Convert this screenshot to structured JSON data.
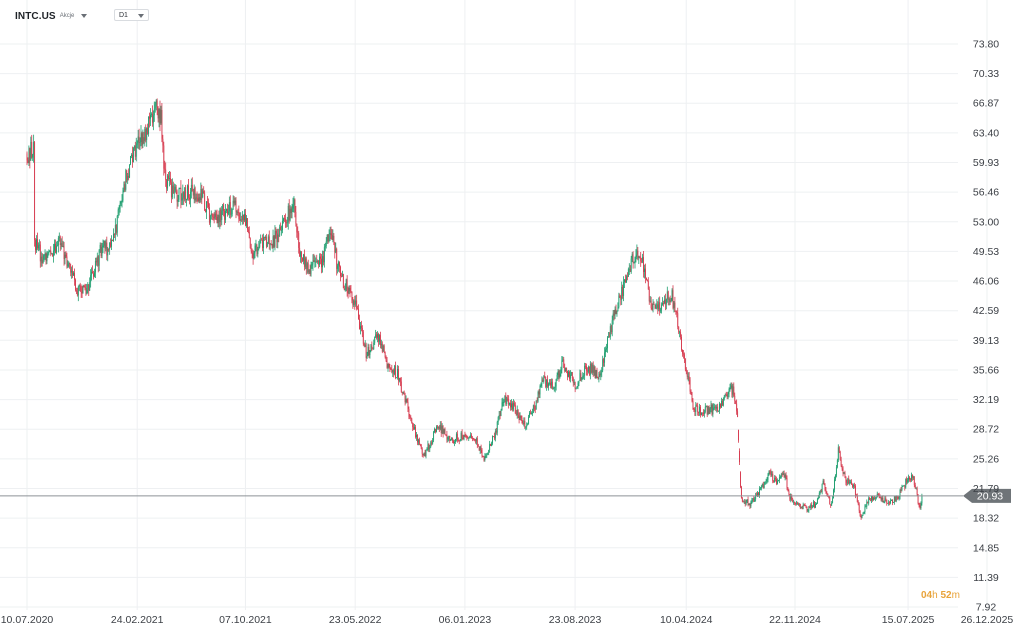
{
  "toolbar": {
    "symbol": "INTC.US",
    "asset_type": "Akcje",
    "interval": "D1"
  },
  "countdown": {
    "hours": "04",
    "hours_unit": "h",
    "minutes": "52",
    "minutes_unit": "m"
  },
  "colors": {
    "up": "#1e9e6f",
    "down": "#d6394d",
    "grid": "#eef0f2",
    "axis_text": "#3b3f45",
    "price_line": "#8d9296",
    "price_tag_bg": "#6f7478",
    "countdown": "#e8a33a"
  },
  "chart_data": {
    "type": "candlestick",
    "instrument": "INTC.US",
    "timeframe": "D1",
    "current_price": 20.93,
    "current_price_label": "20.93",
    "ylim": [
      7.92,
      75.6
    ],
    "y_ticks": [
      "73.80",
      "70.33",
      "66.87",
      "63.40",
      "59.93",
      "56.46",
      "53.00",
      "49.53",
      "46.06",
      "42.59",
      "39.13",
      "35.66",
      "32.19",
      "28.72",
      "25.26",
      "21.79",
      "18.32",
      "14.85",
      "11.39",
      "7.92"
    ],
    "x_ticks": [
      "10.07.2020",
      "24.02.2021",
      "07.10.2021",
      "23.05.2022",
      "06.01.2023",
      "23.08.2023",
      "10.04.2024",
      "22.11.2024",
      "15.07.2025",
      "26.12.2025"
    ],
    "grid": true,
    "price_path": [
      [
        "10.07.2020",
        61.0
      ],
      [
        "2020-07-24",
        61.5
      ],
      [
        "2020-07-26",
        50.5
      ],
      [
        "2020-08-15",
        48.5
      ],
      [
        "2020-09-15",
        51.0
      ],
      [
        "2020-10-23",
        45.0
      ],
      [
        "2020-11-10",
        44.5
      ],
      [
        "2020-12-10",
        49.5
      ],
      [
        "2021-01-05",
        50.5
      ],
      [
        "2021-01-25",
        57.0
      ],
      [
        "24.02.2021",
        62.0
      ],
      [
        "2021-03-15",
        63.5
      ],
      [
        "2021-04-05",
        66.5
      ],
      [
        "2021-04-15",
        65.0
      ],
      [
        "2021-04-23",
        58.0
      ],
      [
        "2021-05-15",
        56.0
      ],
      [
        "2021-06-15",
        56.5
      ],
      [
        "2021-07-10",
        56.0
      ],
      [
        "2021-07-25",
        53.5
      ],
      [
        "2021-08-15",
        54.0
      ],
      [
        "2021-09-15",
        54.5
      ],
      [
        "07.10.2021",
        53.0
      ],
      [
        "2021-10-22",
        49.5
      ],
      [
        "2021-11-15",
        50.5
      ],
      [
        "2021-12-10",
        51.0
      ],
      [
        "2022-01-05",
        54.0
      ],
      [
        "2022-01-15",
        56.0
      ],
      [
        "2022-01-28",
        49.0
      ],
      [
        "2022-02-15",
        47.5
      ],
      [
        "2022-03-15",
        48.5
      ],
      [
        "2022-04-01",
        52.0
      ],
      [
        "2022-04-20",
        47.0
      ],
      [
        "23.05.2022",
        43.5
      ],
      [
        "2022-06-15",
        37.5
      ],
      [
        "2022-07-10",
        39.5
      ],
      [
        "2022-07-29",
        36.5
      ],
      [
        "2022-08-20",
        35.0
      ],
      [
        "2022-09-15",
        30.0
      ],
      [
        "2022-10-13",
        25.5
      ],
      [
        "2022-11-10",
        29.0
      ],
      [
        "2022-12-10",
        27.5
      ],
      [
        "06.01.2023",
        28.0
      ],
      [
        "2023-01-27",
        27.5
      ],
      [
        "2023-02-15",
        25.5
      ],
      [
        "2023-03-10",
        28.0
      ],
      [
        "2023-03-28",
        32.5
      ],
      [
        "2023-04-20",
        31.0
      ],
      [
        "2023-05-10",
        29.0
      ],
      [
        "2023-06-01",
        31.5
      ],
      [
        "2023-06-15",
        34.5
      ],
      [
        "2023-07-10",
        33.5
      ],
      [
        "2023-07-28",
        36.5
      ],
      [
        "23.08.2023",
        34.0
      ],
      [
        "2023-09-15",
        36.0
      ],
      [
        "2023-10-15",
        35.0
      ],
      [
        "2023-11-01",
        40.0
      ],
      [
        "2023-11-25",
        44.0
      ],
      [
        "2023-12-15",
        47.5
      ],
      [
        "2023-12-28",
        50.0
      ],
      [
        "2024-01-10",
        48.5
      ],
      [
        "2024-01-26",
        43.5
      ],
      [
        "2024-02-15",
        43.0
      ],
      [
        "2024-03-10",
        44.5
      ],
      [
        "2024-03-20",
        42.0
      ],
      [
        "2024-04-05",
        37.0
      ],
      [
        "10.04.2024",
        36.0
      ],
      [
        "2024-04-26",
        31.0
      ],
      [
        "2024-05-15",
        31.0
      ],
      [
        "2024-06-15",
        31.0
      ],
      [
        "2024-07-15",
        33.5
      ],
      [
        "2024-07-25",
        30.5
      ],
      [
        "2024-08-02",
        20.5
      ],
      [
        "2024-08-20",
        20.0
      ],
      [
        "2024-09-10",
        21.5
      ],
      [
        "2024-09-28",
        23.5
      ],
      [
        "2024-10-15",
        22.5
      ],
      [
        "2024-11-01",
        23.5
      ],
      [
        "2024-11-10",
        21.0
      ],
      [
        "22.11.2024",
        20.0
      ],
      [
        "2024-12-15",
        19.5
      ],
      [
        "2025-01-05",
        20.0
      ],
      [
        "2025-01-20",
        22.5
      ],
      [
        "2025-02-05",
        19.5
      ],
      [
        "2025-02-20",
        26.5
      ],
      [
        "2025-03-05",
        23.0
      ],
      [
        "2025-03-25",
        22.0
      ],
      [
        "2025-04-08",
        18.5
      ],
      [
        "2025-04-25",
        20.5
      ],
      [
        "2025-05-15",
        21.0
      ],
      [
        "2025-06-05",
        19.8
      ],
      [
        "2025-06-25",
        21.0
      ],
      [
        "2025-07-10",
        22.5
      ],
      [
        "2025-07-24",
        23.5
      ],
      [
        "2025-08-01",
        21.5
      ],
      [
        "2025-08-08",
        19.5
      ],
      [
        "2025-08-14",
        20.93
      ]
    ]
  }
}
